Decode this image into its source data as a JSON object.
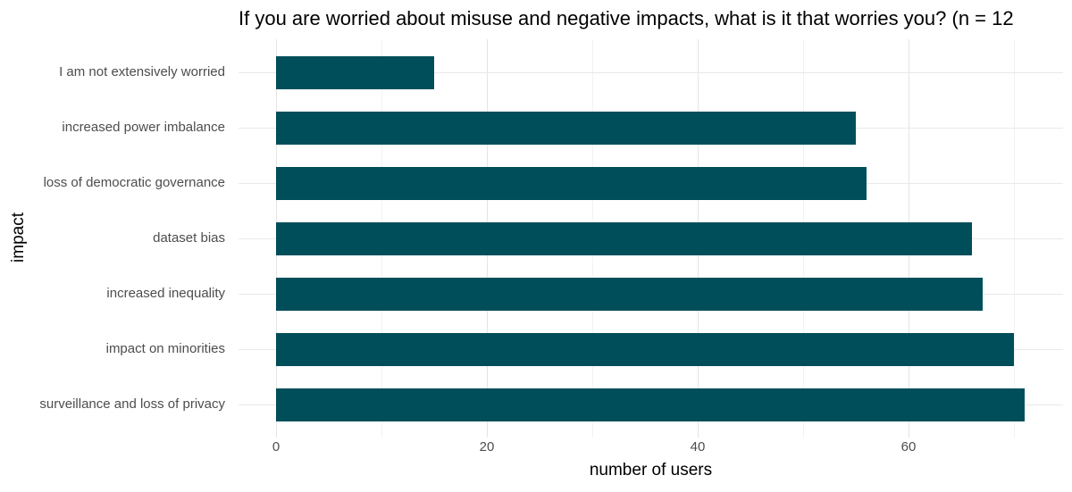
{
  "chart_data": {
    "type": "bar",
    "orientation": "horizontal",
    "title": "If you are worried about misuse and negative impacts, what is it that worries you? (n = 12",
    "xlabel": "number of users",
    "ylabel": "impact",
    "categories": [
      "I am not extensively worried",
      "increased power imbalance",
      "loss of democratic governance",
      "dataset bias",
      "increased inequality",
      "impact on minorities",
      "surveillance and loss of privacy"
    ],
    "values": [
      15,
      55,
      56,
      66,
      67,
      70,
      71
    ],
    "xlim": [
      0,
      74.6
    ],
    "x_ticks": [
      0,
      20,
      40,
      60
    ],
    "x_minor_ticks": [
      10,
      30,
      50,
      70
    ],
    "grid": "major-and-minor, light gray on white",
    "legend": "none",
    "colors": {
      "bar": "#004e5a",
      "axis_text": "#4d4d4d",
      "title_text": "#000000",
      "grid_major": "#e4e4e4",
      "grid_minor": "#f2f2f2",
      "background": "#ffffff"
    }
  }
}
